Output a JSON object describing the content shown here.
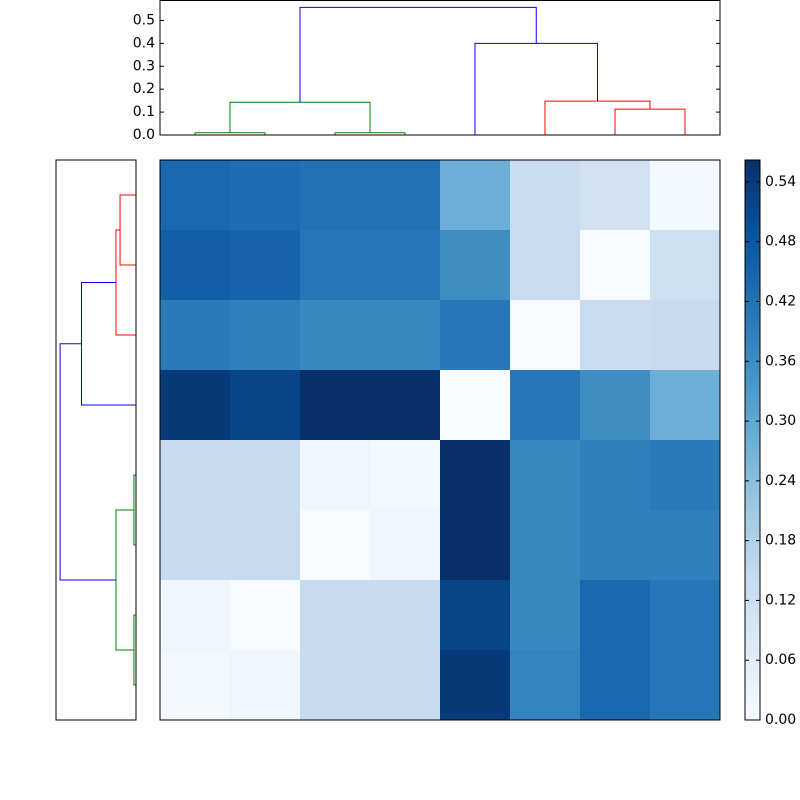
{
  "chart_data": [
    {
      "type": "dendrogram",
      "orientation": "top",
      "xlim": [
        0,
        80
      ],
      "ylim": [
        0,
        0.587
      ],
      "yticks": [
        {
          "value": 0,
          "label": "0.0"
        },
        {
          "value": 0.1,
          "label": "0.1"
        },
        {
          "value": 0.2,
          "label": "0.2"
        },
        {
          "value": 0.3,
          "label": "0.3"
        },
        {
          "value": 0.4,
          "label": "0.4"
        },
        {
          "value": 0.5,
          "label": "0.5"
        }
      ],
      "links": [
        {
          "leaf": [
            5,
            5,
            15,
            15
          ],
          "height": [
            0,
            0.01,
            0.01,
            0
          ],
          "color": "#008000"
        },
        {
          "leaf": [
            25,
            25,
            35,
            35
          ],
          "height": [
            0,
            0.01,
            0.01,
            0
          ],
          "color": "#008000"
        },
        {
          "leaf": [
            10,
            10,
            30,
            30
          ],
          "height": [
            0.01,
            0.143,
            0.143,
            0.01
          ],
          "color": "#008000"
        },
        {
          "leaf": [
            65,
            65,
            75,
            75
          ],
          "height": [
            0,
            0.113,
            0.113,
            0
          ],
          "color": "#ff0000"
        },
        {
          "leaf": [
            55,
            55,
            70,
            70
          ],
          "height": [
            0,
            0.148,
            0.148,
            0.113
          ],
          "color": "#ff0000"
        },
        {
          "leaf": [
            45,
            45,
            62.5,
            62.5
          ],
          "height": [
            0,
            0.4,
            0.4,
            0.148
          ],
          "color": "#0000ff"
        },
        {
          "leaf": [
            20,
            20,
            53.75,
            53.75
          ],
          "height": [
            0.143,
            0.557,
            0.557,
            0.4
          ],
          "color": "#0000ff"
        }
      ]
    },
    {
      "type": "dendrogram",
      "orientation": "left",
      "xlim": [
        0.587,
        0
      ],
      "ylim": [
        80,
        0
      ],
      "links": [
        {
          "leaf": [
            5,
            5,
            15,
            15
          ],
          "height": [
            0,
            0.117,
            0.117,
            0
          ],
          "color": "#ff0000"
        },
        {
          "leaf": [
            10,
            10,
            25,
            25
          ],
          "height": [
            0.117,
            0.147,
            0.147,
            0
          ],
          "color": "#ff0000"
        },
        {
          "leaf": [
            17.5,
            17.5,
            35,
            35
          ],
          "height": [
            0.147,
            0.4,
            0.4,
            0
          ],
          "color": "#0000ff"
        },
        {
          "leaf": [
            45,
            45,
            55,
            55
          ],
          "height": [
            0,
            0.015,
            0.015,
            0
          ],
          "color": "#008000"
        },
        {
          "leaf": [
            65,
            65,
            75,
            75
          ],
          "height": [
            0,
            0.015,
            0.015,
            0
          ],
          "color": "#008000"
        },
        {
          "leaf": [
            50,
            50,
            70,
            70
          ],
          "height": [
            0.015,
            0.147,
            0.147,
            0.015
          ],
          "color": "#008000"
        },
        {
          "leaf": [
            26.25,
            26.25,
            60,
            60
          ],
          "height": [
            0.4,
            0.557,
            0.557,
            0.147
          ],
          "color": "#0000ff"
        }
      ]
    },
    {
      "type": "heatmap",
      "colormap": "Blues",
      "vlim": [
        0,
        0.562
      ],
      "values": [
        [
          0.44,
          0.43,
          0.42,
          0.42,
          0.28,
          0.13,
          0.11,
          0.01
        ],
        [
          0.46,
          0.45,
          0.41,
          0.41,
          0.36,
          0.13,
          0.0,
          0.12
        ],
        [
          0.4,
          0.39,
          0.37,
          0.37,
          0.41,
          0.0,
          0.13,
          0.14
        ],
        [
          0.54,
          0.52,
          0.56,
          0.56,
          0.0,
          0.41,
          0.36,
          0.28
        ],
        [
          0.14,
          0.14,
          0.02,
          0.01,
          0.56,
          0.37,
          0.39,
          0.4
        ],
        [
          0.14,
          0.14,
          0.0,
          0.02,
          0.56,
          0.37,
          0.39,
          0.39
        ],
        [
          0.02,
          0.0,
          0.14,
          0.14,
          0.52,
          0.37,
          0.44,
          0.41
        ],
        [
          0.01,
          0.02,
          0.14,
          0.14,
          0.54,
          0.38,
          0.44,
          0.41
        ]
      ],
      "colorbar_ticks": [
        {
          "value": 0,
          "label": "0.00"
        },
        {
          "value": 0.06,
          "label": "0.06"
        },
        {
          "value": 0.12,
          "label": "0.12"
        },
        {
          "value": 0.18,
          "label": "0.18"
        },
        {
          "value": 0.24,
          "label": "0.24"
        },
        {
          "value": 0.3,
          "label": "0.30"
        },
        {
          "value": 0.36,
          "label": "0.36"
        },
        {
          "value": 0.42,
          "label": "0.42"
        },
        {
          "value": 0.48,
          "label": "0.48"
        },
        {
          "value": 0.54,
          "label": "0.54"
        }
      ]
    }
  ]
}
